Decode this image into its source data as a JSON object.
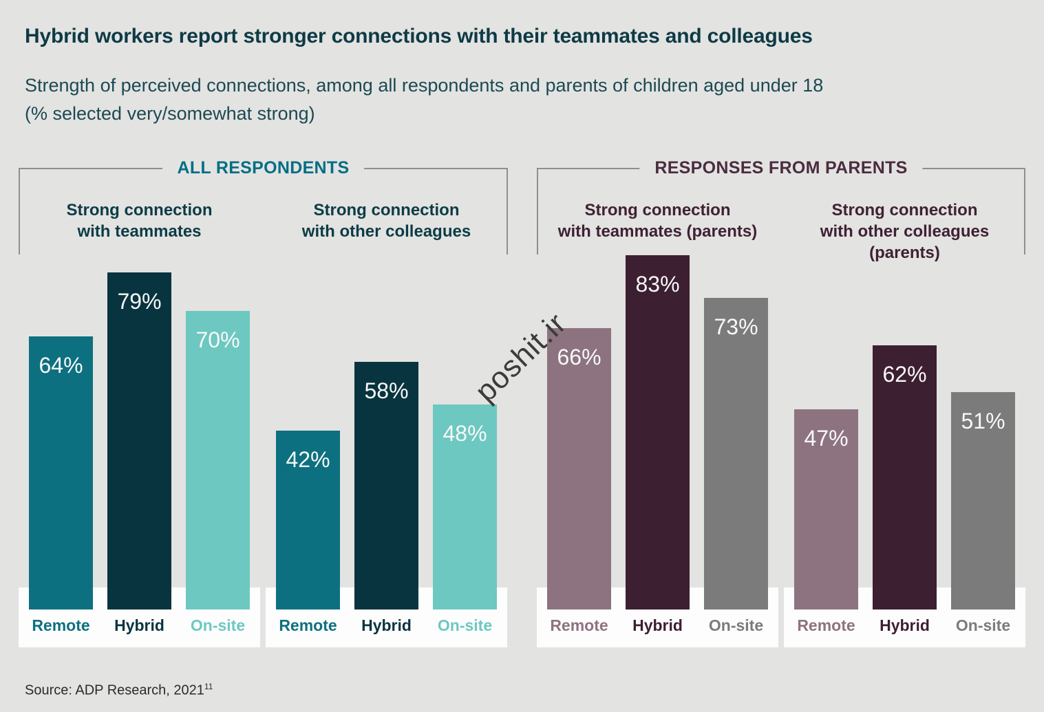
{
  "page": {
    "title": "Hybrid workers report stronger connections with their teammates and colleagues",
    "subtitle_line1": "Strength of perceived connections, among all respondents and parents of children aged under 18",
    "subtitle_line2": "(% selected very/somewhat strong)",
    "source_text": "Source: ADP Research, 2021",
    "source_superscript": "11",
    "watermark": "poshit.ir"
  },
  "chart_data": {
    "type": "bar",
    "title": "Hybrid workers report stronger connections with their teammates and colleagues",
    "subtitle": "Strength of perceived connections, among all respondents and parents of children aged under 18 (% selected very/somewhat strong)",
    "ylim": [
      0,
      100
    ],
    "grid": false,
    "value_suffix": "%",
    "legend_position": "below-bars",
    "categories": [
      "Remote",
      "Hybrid",
      "On-site"
    ],
    "groups": [
      {
        "name": "ALL RESPONDENTS",
        "accent_color": "#016e84",
        "heading_color": "#0c3c46",
        "category_colors": [
          "#0d7080",
          "#08343f",
          "#6dc8c1"
        ],
        "subcharts": [
          {
            "title_lines": [
              "Strong connection",
              "with teammates"
            ],
            "values": [
              64,
              79,
              70
            ]
          },
          {
            "title_lines": [
              "Strong connection",
              "with other colleagues"
            ],
            "values": [
              42,
              58,
              48
            ]
          }
        ]
      },
      {
        "name": "RESPONSES FROM PARENTS",
        "accent_color": "#4a2c3f",
        "heading_color": "#3f2134",
        "category_colors": [
          "#8d7380",
          "#3c1f31",
          "#7b7b7b"
        ],
        "subcharts": [
          {
            "title_lines": [
              "Strong connection",
              "with teammates (parents)"
            ],
            "values": [
              66,
              83,
              73
            ]
          },
          {
            "title_lines": [
              "Strong connection",
              "with other colleagues",
              "(parents)"
            ],
            "values": [
              47,
              62,
              51
            ]
          }
        ]
      }
    ]
  },
  "colors": {
    "background": "#e3e3e1",
    "panel": "#fdfdfd",
    "bracket_line": "#8f8f8f",
    "title_text": "#0e3a46",
    "subtitle_text": "#1c4953",
    "value_label_text": "#f8f8f8",
    "watermark_text": "#3b3b3b",
    "source_text": "#2b2b2b"
  }
}
